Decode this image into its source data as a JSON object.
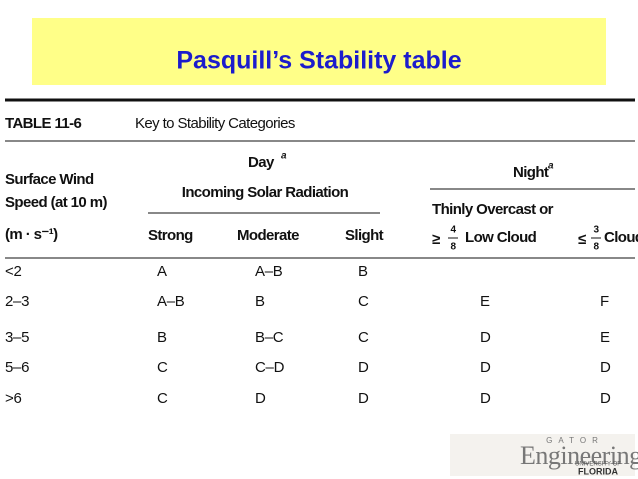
{
  "slide_title": "Pasquill’s Stability table",
  "table": {
    "label": "TABLE 11-6",
    "caption": "Key to Stability Categories",
    "wind_header": [
      "Surface Wind",
      "Speed (at 10 m)",
      "(m · s⁻¹)"
    ],
    "day": {
      "label": "Day",
      "note": "a",
      "subtitle": "Incoming Solar Radiation",
      "columns": [
        "Strong",
        "Moderate",
        "Slight"
      ]
    },
    "night": {
      "label": "Night",
      "note": "a",
      "col1": {
        "line1": "Thinly Overcast or",
        "prefix": "≥",
        "num": "4",
        "den": "8",
        "suffix": "Low Cloud"
      },
      "col2": {
        "prefix": "≤",
        "num": "3",
        "den": "8",
        "suffix": "Cloud"
      }
    },
    "rows": [
      [
        "<2",
        "A",
        "A–B",
        "B"
      ],
      [
        "2–3",
        "A–B",
        "B",
        "C",
        "E",
        "F"
      ],
      [
        "3–5",
        "B",
        "B–C",
        "C",
        "D",
        "E"
      ],
      [
        "5–6",
        "C",
        "C–D",
        "D",
        "D",
        "D"
      ],
      [
        ">6",
        "C",
        "D",
        "D",
        "D",
        "D"
      ]
    ]
  },
  "logo": {
    "top": "GATOR",
    "main": "Engineering",
    "sub1": "UNIVERSITY OF",
    "sub2": "FLORIDA"
  }
}
